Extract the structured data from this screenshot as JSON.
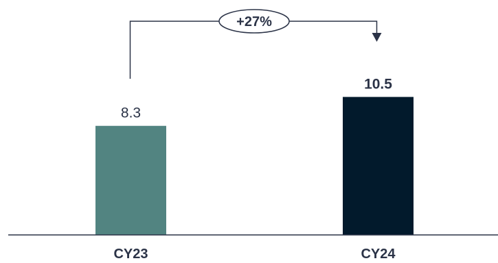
{
  "chart_data": {
    "type": "bar",
    "categories": [
      "CY23",
      "CY24"
    ],
    "values": [
      8.3,
      10.5
    ],
    "value_labels": [
      "8.3",
      "10.5"
    ],
    "colors": [
      "#528481",
      "#021a2c"
    ],
    "change_annotation": "+27%",
    "title": "",
    "xlabel": "",
    "ylabel": "",
    "ylim": [
      0,
      12.3
    ],
    "grid": false,
    "legend": "none"
  }
}
